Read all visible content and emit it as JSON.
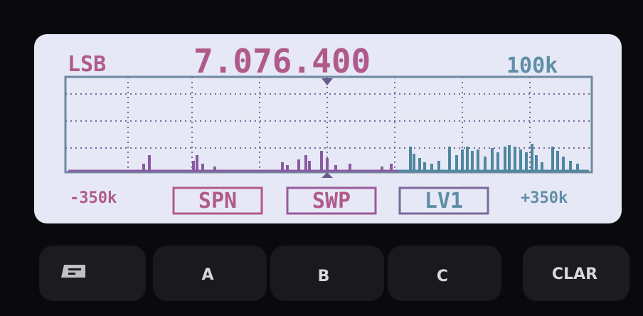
{
  "display": {
    "mode": "LSB",
    "frequency": "7.076.400",
    "span": "100k",
    "left_offset": "-350k",
    "right_offset": "+350k",
    "soft_keys": [
      "SPN",
      "SWP",
      "LV1"
    ]
  },
  "keys": [
    "A",
    "B",
    "C",
    "CLAR"
  ]
}
